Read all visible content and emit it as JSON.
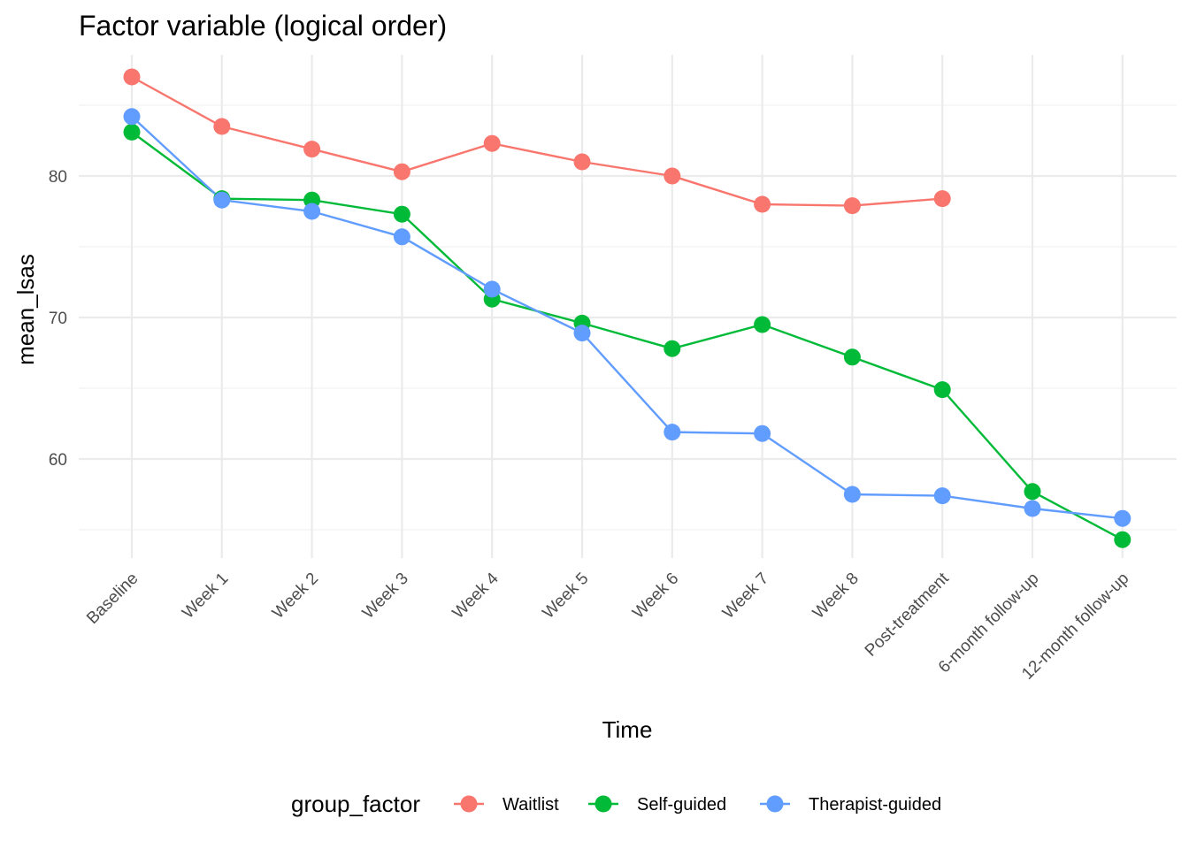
{
  "chart_data": {
    "type": "line",
    "title": "Factor variable (logical order)",
    "xlabel": "Time",
    "ylabel": "mean_lsas",
    "ylim": [
      53.0,
      88.8
    ],
    "yticks": [
      60,
      70,
      80
    ],
    "yminor": [
      55,
      65,
      75,
      85
    ],
    "grid": true,
    "legend_position": "bottom",
    "legend_title": "group_factor",
    "categories": [
      "Baseline",
      "Week 1",
      "Week 2",
      "Week 3",
      "Week 4",
      "Week 5",
      "Week 6",
      "Week 7",
      "Week 8",
      "Post-treatment",
      "6-month follow-up",
      "12-month follow-up"
    ],
    "series": [
      {
        "name": "Waitlist",
        "color": "#F8766D",
        "values": [
          87.0,
          83.5,
          81.9,
          80.3,
          82.3,
          81.0,
          80.0,
          78.0,
          77.9,
          78.4,
          null,
          null
        ]
      },
      {
        "name": "Self-guided",
        "color": "#00BA38",
        "values": [
          83.1,
          78.4,
          78.3,
          77.3,
          71.3,
          69.6,
          67.8,
          69.5,
          67.2,
          64.9,
          57.7,
          54.3
        ]
      },
      {
        "name": "Therapist-guided",
        "color": "#619CFF",
        "values": [
          84.2,
          78.3,
          77.5,
          75.7,
          72.0,
          68.9,
          61.9,
          61.8,
          57.5,
          57.4,
          56.5,
          55.8
        ]
      }
    ]
  }
}
